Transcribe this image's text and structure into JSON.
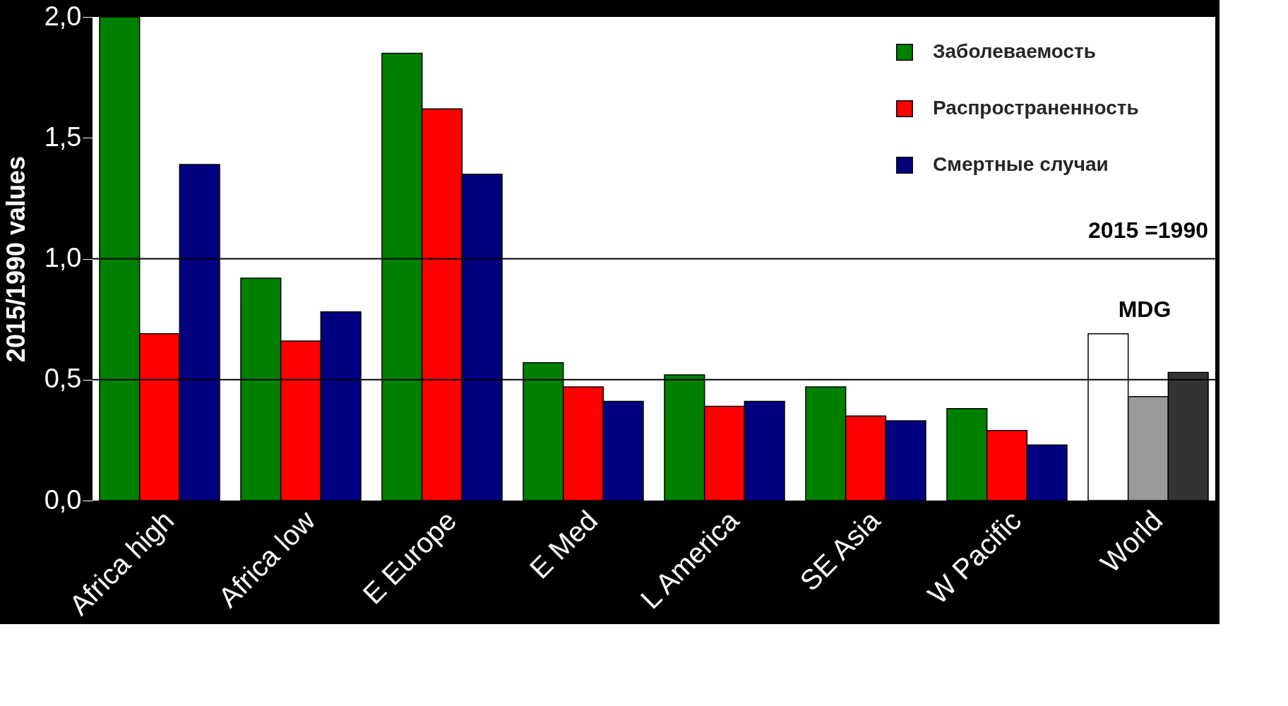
{
  "chart_data": {
    "type": "bar",
    "ylabel": "2015/1990 values",
    "categories": [
      "Africa high",
      "Africa low",
      "E Europe",
      "E Med",
      "L America",
      "SE Asia",
      "W Pacific",
      "World"
    ],
    "series": [
      {
        "name": "Заболеваемость",
        "color": "#008000",
        "colors": [
          "#008000",
          "#008000",
          "#008000",
          "#008000",
          "#008000",
          "#008000",
          "#008000",
          "#ffffff"
        ],
        "values": [
          2.0,
          0.92,
          1.85,
          0.57,
          0.52,
          0.47,
          0.38,
          0.69
        ]
      },
      {
        "name": "Распространенность",
        "color": "#ff0000",
        "colors": [
          "#ff0000",
          "#ff0000",
          "#ff0000",
          "#ff0000",
          "#ff0000",
          "#ff0000",
          "#ff0000",
          "#999999"
        ],
        "values": [
          0.69,
          0.66,
          1.62,
          0.47,
          0.39,
          0.35,
          0.29,
          0.43
        ]
      },
      {
        "name": "Смертные случаи",
        "color": "#000080",
        "colors": [
          "#000080",
          "#000080",
          "#000080",
          "#000080",
          "#000080",
          "#000080",
          "#000080",
          "#333333"
        ],
        "values": [
          1.39,
          0.78,
          1.35,
          0.41,
          0.41,
          0.33,
          0.23,
          0.53
        ]
      }
    ],
    "ylim": [
      0,
      2.0
    ],
    "yticks": [
      {
        "value": 0,
        "label": "0,0"
      },
      {
        "value": 0.5,
        "label": "0,5"
      },
      {
        "value": 1.0,
        "label": "1,0"
      },
      {
        "value": 1.5,
        "label": "1,5"
      },
      {
        "value": 2.0,
        "label": "2,0"
      }
    ],
    "ref_lines": [
      {
        "axis": "y",
        "value": 1.0,
        "color": "#000000"
      },
      {
        "axis": "y",
        "value": 0.5,
        "color": "#000000"
      }
    ],
    "annotations": [
      "2015 =1990",
      "MDG"
    ],
    "legend": "top right"
  }
}
